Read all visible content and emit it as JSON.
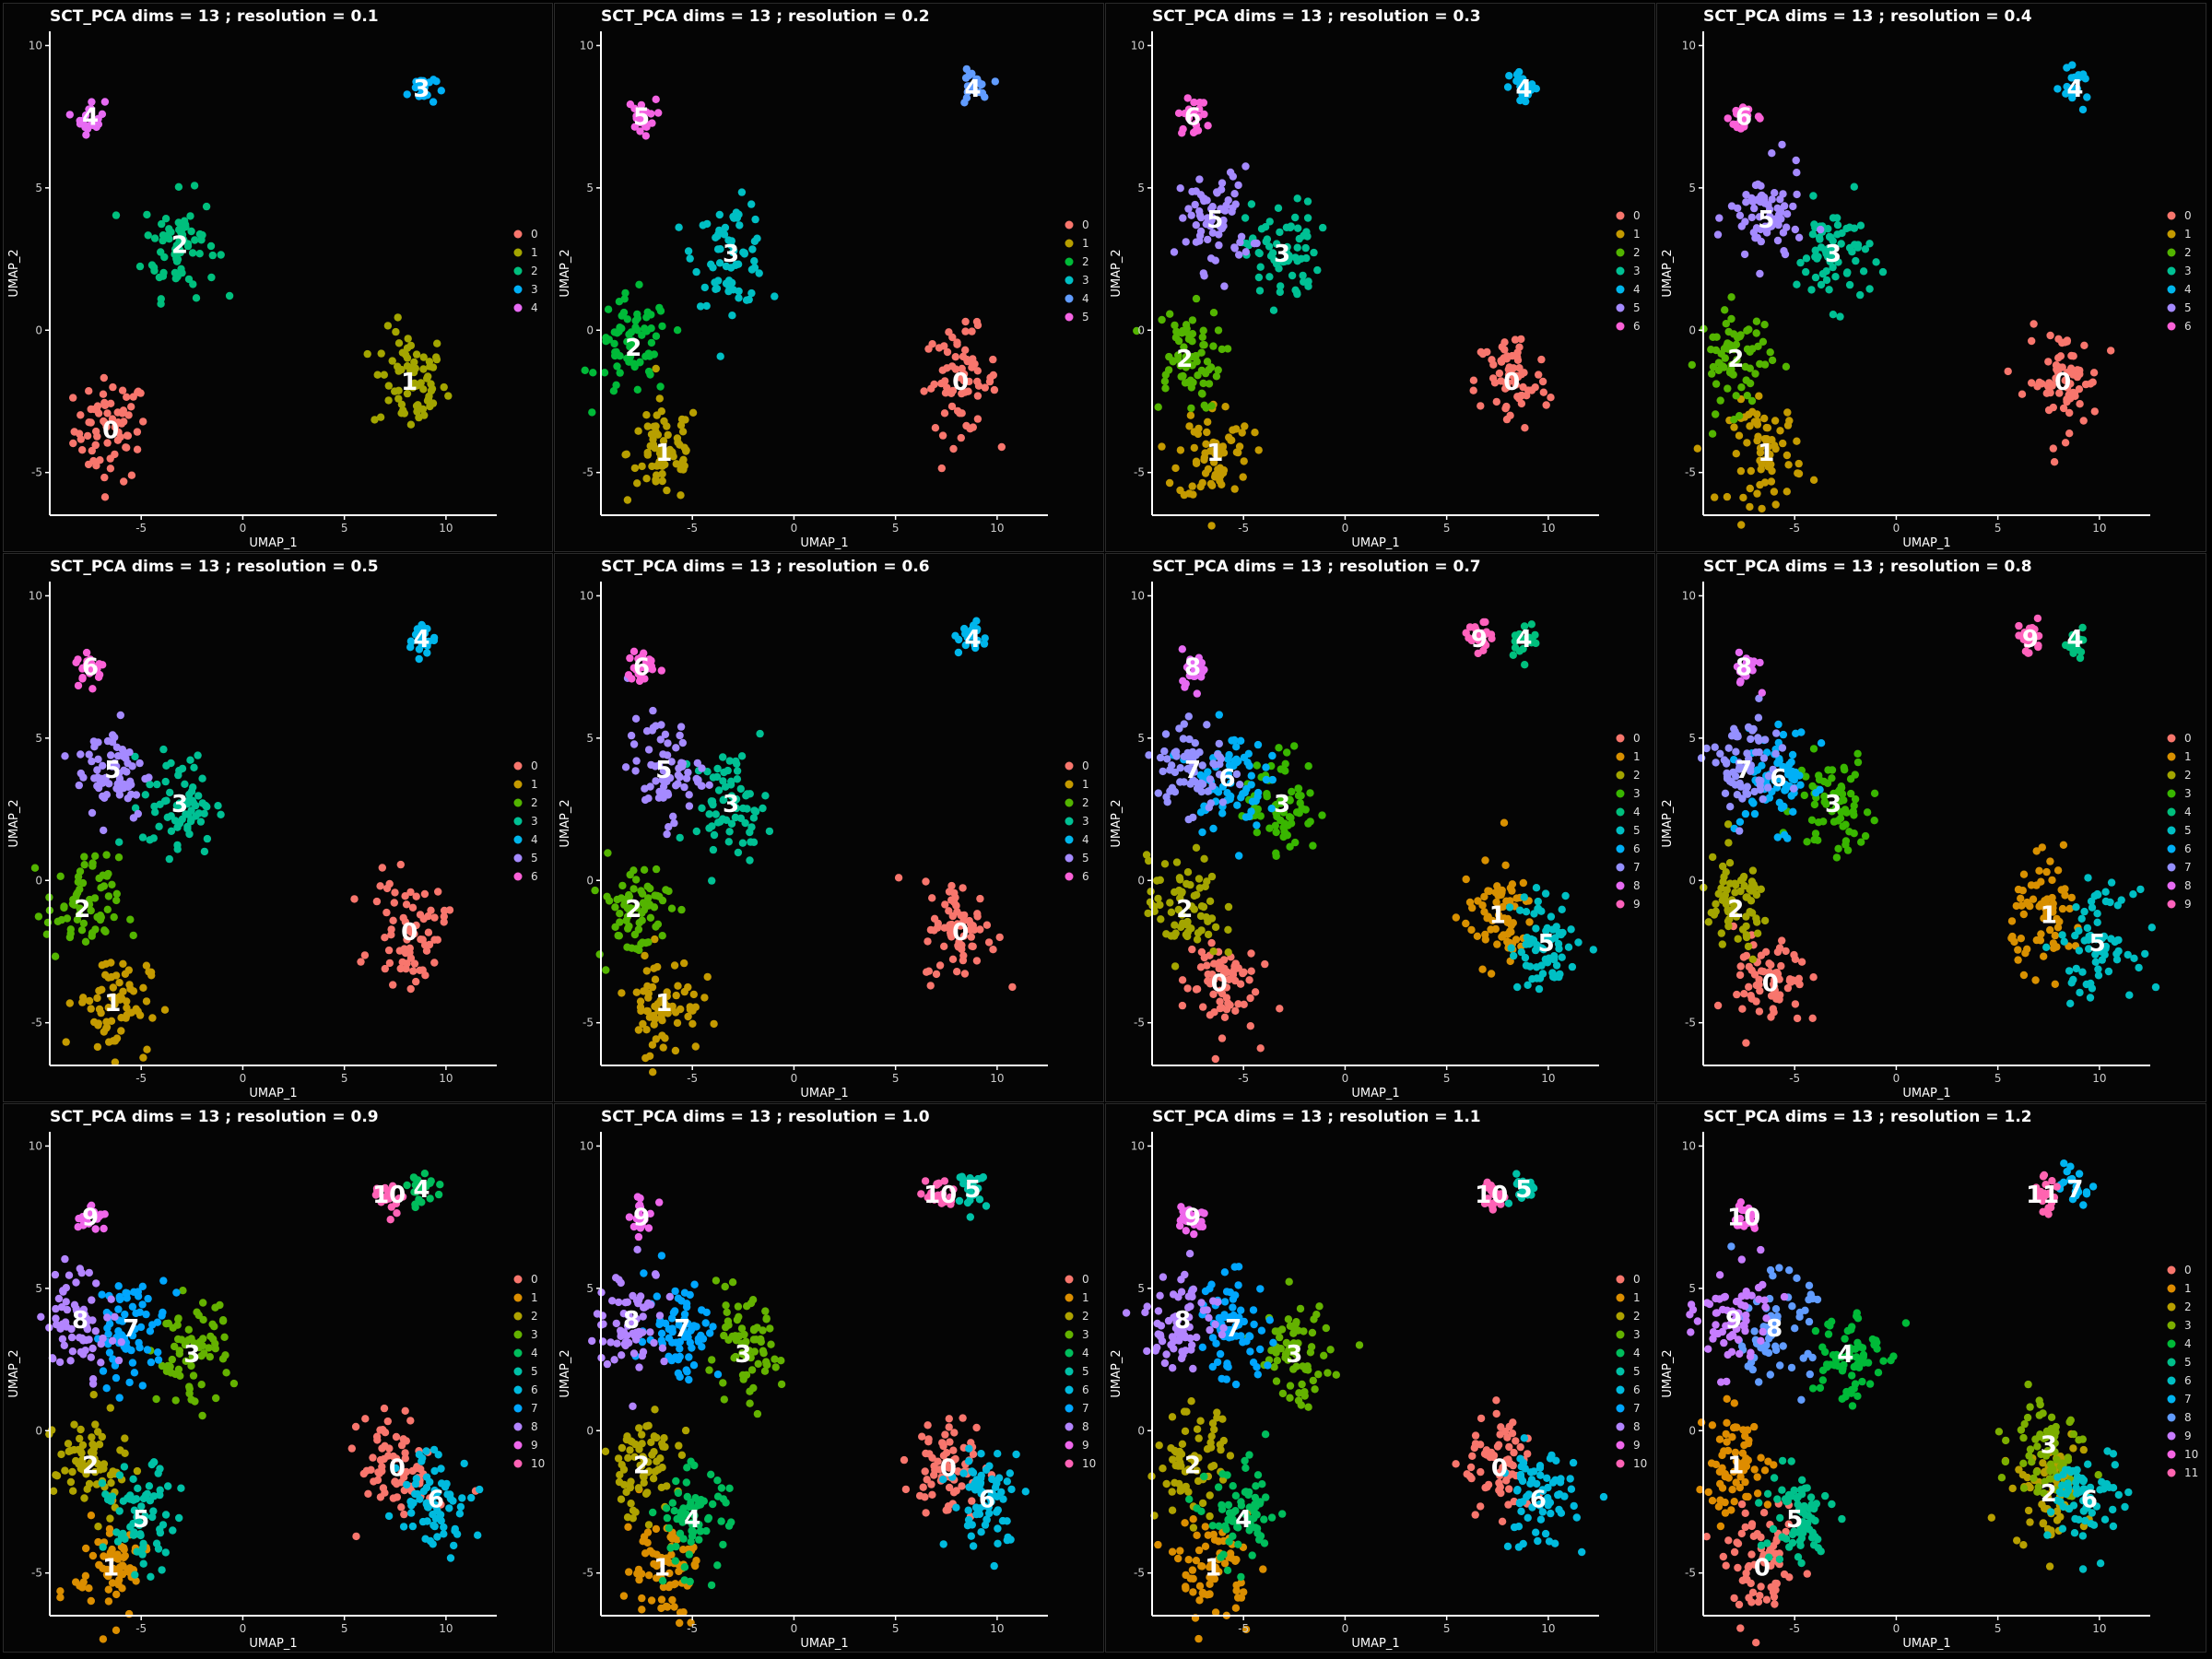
{
  "figure": {
    "xlabel": "UMAP_1",
    "ylabel": "UMAP_2",
    "xticks": [
      -5,
      0,
      5,
      10
    ],
    "yticks": [
      -5,
      0,
      5,
      10
    ],
    "xlim": [
      -9.5,
      12.5
    ],
    "ylim": [
      -6.5,
      10.5
    ],
    "background": "#000000",
    "text_color": "#ffffff"
  },
  "chart_data": [
    {
      "type": "scatter",
      "title": "SCT_PCA dims =  13 ; resolution = 0.1",
      "legend": [
        "0",
        "1",
        "2",
        "3",
        "4"
      ],
      "clusters": [
        {
          "label": "0",
          "color": "#F8766D",
          "center": [
            -6.5,
            -3.5
          ]
        },
        {
          "label": "1",
          "color": "#A3A500",
          "center": [
            8.2,
            -1.8
          ]
        },
        {
          "label": "2",
          "color": "#00BF7D",
          "center": [
            -3.1,
            3.0
          ]
        },
        {
          "label": "3",
          "color": "#00B0F6",
          "center": [
            8.8,
            8.5
          ]
        },
        {
          "label": "4",
          "color": "#E76BF3",
          "center": [
            -7.5,
            7.5
          ]
        }
      ]
    },
    {
      "type": "scatter",
      "title": "SCT_PCA dims =  13 ; resolution = 0.2",
      "legend": [
        "0",
        "1",
        "2",
        "3",
        "4",
        "5"
      ],
      "clusters": [
        {
          "label": "0",
          "color": "#F8766D",
          "center": [
            8.2,
            -1.8
          ]
        },
        {
          "label": "1",
          "color": "#B79F00",
          "center": [
            -6.4,
            -4.3
          ]
        },
        {
          "label": "2",
          "color": "#00BA38",
          "center": [
            -7.9,
            -0.6
          ]
        },
        {
          "label": "3",
          "color": "#00BFC4",
          "center": [
            -3.1,
            2.7
          ]
        },
        {
          "label": "4",
          "color": "#619CFF",
          "center": [
            8.8,
            8.5
          ]
        },
        {
          "label": "5",
          "color": "#F564E3",
          "center": [
            -7.5,
            7.5
          ]
        }
      ]
    },
    {
      "type": "scatter",
      "title": "SCT_PCA dims =  13 ; resolution = 0.3",
      "legend": [
        "0",
        "1",
        "2",
        "3",
        "4",
        "5",
        "6"
      ],
      "clusters": [
        {
          "label": "0",
          "color": "#F8766D",
          "center": [
            8.2,
            -1.8
          ]
        },
        {
          "label": "1",
          "color": "#C49A00",
          "center": [
            -6.4,
            -4.3
          ]
        },
        {
          "label": "2",
          "color": "#53B400",
          "center": [
            -7.9,
            -1.0
          ]
        },
        {
          "label": "3",
          "color": "#00C094",
          "center": [
            -3.1,
            2.7
          ]
        },
        {
          "label": "4",
          "color": "#00B6EB",
          "center": [
            8.8,
            8.5
          ]
        },
        {
          "label": "5",
          "color": "#A58AFF",
          "center": [
            -6.4,
            3.9
          ]
        },
        {
          "label": "6",
          "color": "#FB61D7",
          "center": [
            -7.5,
            7.5
          ]
        }
      ]
    },
    {
      "type": "scatter",
      "title": "SCT_PCA dims =  13 ; resolution = 0.4",
      "legend": [
        "0",
        "1",
        "2",
        "3",
        "4",
        "5",
        "6"
      ],
      "clusters": [
        {
          "label": "0",
          "color": "#F8766D",
          "center": [
            8.2,
            -1.8
          ]
        },
        {
          "label": "1",
          "color": "#C49A00",
          "center": [
            -6.4,
            -4.3
          ]
        },
        {
          "label": "2",
          "color": "#53B400",
          "center": [
            -7.9,
            -1.0
          ]
        },
        {
          "label": "3",
          "color": "#00C094",
          "center": [
            -3.1,
            2.7
          ]
        },
        {
          "label": "4",
          "color": "#00B6EB",
          "center": [
            8.8,
            8.5
          ]
        },
        {
          "label": "5",
          "color": "#A58AFF",
          "center": [
            -6.4,
            3.9
          ]
        },
        {
          "label": "6",
          "color": "#FB61D7",
          "center": [
            -7.5,
            7.5
          ]
        }
      ]
    },
    {
      "type": "scatter",
      "title": "SCT_PCA dims =  13 ; resolution = 0.5",
      "legend": [
        "0",
        "1",
        "2",
        "3",
        "4",
        "5",
        "6"
      ],
      "clusters": [
        {
          "label": "0",
          "color": "#F8766D",
          "center": [
            8.2,
            -1.8
          ]
        },
        {
          "label": "1",
          "color": "#C49A00",
          "center": [
            -6.4,
            -4.3
          ]
        },
        {
          "label": "2",
          "color": "#53B400",
          "center": [
            -7.9,
            -1.0
          ]
        },
        {
          "label": "3",
          "color": "#00C094",
          "center": [
            -3.1,
            2.7
          ]
        },
        {
          "label": "4",
          "color": "#00B6EB",
          "center": [
            8.8,
            8.5
          ]
        },
        {
          "label": "5",
          "color": "#A58AFF",
          "center": [
            -6.4,
            3.9
          ]
        },
        {
          "label": "6",
          "color": "#FB61D7",
          "center": [
            -7.5,
            7.5
          ]
        }
      ]
    },
    {
      "type": "scatter",
      "title": "SCT_PCA dims =  13 ; resolution = 0.6",
      "legend": [
        "0",
        "1",
        "2",
        "3",
        "4",
        "5",
        "6"
      ],
      "clusters": [
        {
          "label": "0",
          "color": "#F8766D",
          "center": [
            8.2,
            -1.8
          ]
        },
        {
          "label": "1",
          "color": "#C49A00",
          "center": [
            -6.4,
            -4.3
          ]
        },
        {
          "label": "2",
          "color": "#53B400",
          "center": [
            -7.9,
            -1.0
          ]
        },
        {
          "label": "3",
          "color": "#00C094",
          "center": [
            -3.1,
            2.7
          ]
        },
        {
          "label": "4",
          "color": "#00B6EB",
          "center": [
            8.8,
            8.5
          ]
        },
        {
          "label": "5",
          "color": "#A58AFF",
          "center": [
            -6.4,
            3.9
          ]
        },
        {
          "label": "6",
          "color": "#FB61D7",
          "center": [
            -7.5,
            7.5
          ]
        }
      ]
    },
    {
      "type": "scatter",
      "title": "SCT_PCA dims =  13 ; resolution = 0.7",
      "legend": [
        "0",
        "1",
        "2",
        "3",
        "4",
        "5",
        "6",
        "7",
        "8",
        "9"
      ],
      "clusters": [
        {
          "label": "0",
          "color": "#F8766D",
          "center": [
            -6.2,
            -3.6
          ]
        },
        {
          "label": "1",
          "color": "#D89000",
          "center": [
            7.5,
            -1.2
          ]
        },
        {
          "label": "2",
          "color": "#A3A500",
          "center": [
            -7.9,
            -1.0
          ]
        },
        {
          "label": "3",
          "color": "#39B600",
          "center": [
            -3.1,
            2.7
          ]
        },
        {
          "label": "4",
          "color": "#00BF7D",
          "center": [
            8.8,
            8.5
          ]
        },
        {
          "label": "5",
          "color": "#00BFC4",
          "center": [
            9.9,
            -2.2
          ]
        },
        {
          "label": "6",
          "color": "#00B0F6",
          "center": [
            -5.8,
            3.6
          ]
        },
        {
          "label": "7",
          "color": "#9590FF",
          "center": [
            -7.5,
            3.9
          ]
        },
        {
          "label": "8",
          "color": "#E76BF3",
          "center": [
            -7.5,
            7.5
          ]
        },
        {
          "label": "9",
          "color": "#FF62BC",
          "center": [
            6.6,
            8.5
          ]
        }
      ]
    },
    {
      "type": "scatter",
      "title": "SCT_PCA dims =  13 ; resolution = 0.8",
      "legend": [
        "0",
        "1",
        "2",
        "3",
        "4",
        "5",
        "6",
        "7",
        "8",
        "9"
      ],
      "clusters": [
        {
          "label": "0",
          "color": "#F8766D",
          "center": [
            -6.2,
            -3.6
          ]
        },
        {
          "label": "1",
          "color": "#D89000",
          "center": [
            7.5,
            -1.2
          ]
        },
        {
          "label": "2",
          "color": "#A3A500",
          "center": [
            -7.9,
            -1.0
          ]
        },
        {
          "label": "3",
          "color": "#39B600",
          "center": [
            -3.1,
            2.7
          ]
        },
        {
          "label": "4",
          "color": "#00BF7D",
          "center": [
            8.8,
            8.5
          ]
        },
        {
          "label": "5",
          "color": "#00BFC4",
          "center": [
            9.9,
            -2.2
          ]
        },
        {
          "label": "6",
          "color": "#00B0F6",
          "center": [
            -5.8,
            3.6
          ]
        },
        {
          "label": "7",
          "color": "#9590FF",
          "center": [
            -7.5,
            3.9
          ]
        },
        {
          "label": "8",
          "color": "#E76BF3",
          "center": [
            -7.5,
            7.5
          ]
        },
        {
          "label": "9",
          "color": "#FF62BC",
          "center": [
            6.6,
            8.5
          ]
        }
      ]
    },
    {
      "type": "scatter",
      "title": "SCT_PCA dims =  13 ; resolution = 0.9",
      "legend": [
        "0",
        "1",
        "2",
        "3",
        "4",
        "5",
        "6",
        "7",
        "8",
        "9",
        "10"
      ],
      "clusters": [
        {
          "label": "0",
          "color": "#F8766D",
          "center": [
            7.6,
            -1.3
          ]
        },
        {
          "label": "1",
          "color": "#DB8E00",
          "center": [
            -6.5,
            -4.8
          ]
        },
        {
          "label": "2",
          "color": "#AEA200",
          "center": [
            -7.5,
            -1.2
          ]
        },
        {
          "label": "3",
          "color": "#64B200",
          "center": [
            -2.5,
            2.7
          ]
        },
        {
          "label": "4",
          "color": "#00BD5C",
          "center": [
            8.8,
            8.5
          ]
        },
        {
          "label": "5",
          "color": "#00C1A7",
          "center": [
            -5.0,
            -3.1
          ]
        },
        {
          "label": "6",
          "color": "#00BADE",
          "center": [
            9.5,
            -2.4
          ]
        },
        {
          "label": "7",
          "color": "#00A6FF",
          "center": [
            -5.5,
            3.6
          ]
        },
        {
          "label": "8",
          "color": "#B385FF",
          "center": [
            -8.0,
            3.9
          ]
        },
        {
          "label": "9",
          "color": "#EF67EB",
          "center": [
            -7.5,
            7.5
          ]
        },
        {
          "label": "10",
          "color": "#FF63B6",
          "center": [
            7.2,
            8.3
          ]
        }
      ]
    },
    {
      "type": "scatter",
      "title": "SCT_PCA dims =  13 ; resolution = 1.0",
      "legend": [
        "0",
        "1",
        "2",
        "3",
        "4",
        "5",
        "6",
        "7",
        "8",
        "9",
        "10"
      ],
      "clusters": [
        {
          "label": "0",
          "color": "#F8766D",
          "center": [
            7.6,
            -1.3
          ]
        },
        {
          "label": "1",
          "color": "#DB8E00",
          "center": [
            -6.5,
            -4.8
          ]
        },
        {
          "label": "2",
          "color": "#AEA200",
          "center": [
            -7.5,
            -1.2
          ]
        },
        {
          "label": "3",
          "color": "#64B200",
          "center": [
            -2.5,
            2.7
          ]
        },
        {
          "label": "4",
          "color": "#00BD5C",
          "center": [
            -5.0,
            -3.1
          ]
        },
        {
          "label": "5",
          "color": "#00C1A7",
          "center": [
            8.8,
            8.5
          ]
        },
        {
          "label": "6",
          "color": "#00BADE",
          "center": [
            9.5,
            -2.4
          ]
        },
        {
          "label": "7",
          "color": "#00A6FF",
          "center": [
            -5.5,
            3.6
          ]
        },
        {
          "label": "8",
          "color": "#B385FF",
          "center": [
            -8.0,
            3.9
          ]
        },
        {
          "label": "9",
          "color": "#EF67EB",
          "center": [
            -7.5,
            7.5
          ]
        },
        {
          "label": "10",
          "color": "#FF63B6",
          "center": [
            7.2,
            8.3
          ]
        }
      ]
    },
    {
      "type": "scatter",
      "title": "SCT_PCA dims =  13 ; resolution = 1.1",
      "legend": [
        "0",
        "1",
        "2",
        "3",
        "4",
        "5",
        "6",
        "7",
        "8",
        "9",
        "10"
      ],
      "clusters": [
        {
          "label": "0",
          "color": "#F8766D",
          "center": [
            7.6,
            -1.3
          ]
        },
        {
          "label": "1",
          "color": "#DB8E00",
          "center": [
            -6.5,
            -4.8
          ]
        },
        {
          "label": "2",
          "color": "#AEA200",
          "center": [
            -7.5,
            -1.2
          ]
        },
        {
          "label": "3",
          "color": "#64B200",
          "center": [
            -2.5,
            2.7
          ]
        },
        {
          "label": "4",
          "color": "#00BD5C",
          "center": [
            -5.0,
            -3.1
          ]
        },
        {
          "label": "5",
          "color": "#00C1A7",
          "center": [
            8.8,
            8.5
          ]
        },
        {
          "label": "6",
          "color": "#00BADE",
          "center": [
            9.5,
            -2.4
          ]
        },
        {
          "label": "7",
          "color": "#00A6FF",
          "center": [
            -5.5,
            3.6
          ]
        },
        {
          "label": "8",
          "color": "#B385FF",
          "center": [
            -8.0,
            3.9
          ]
        },
        {
          "label": "9",
          "color": "#EF67EB",
          "center": [
            -7.5,
            7.5
          ]
        },
        {
          "label": "10",
          "color": "#FF63B6",
          "center": [
            7.2,
            8.3
          ]
        }
      ]
    },
    {
      "type": "scatter",
      "title": "SCT_PCA dims =  13 ; resolution = 1.2",
      "legend": [
        "0",
        "1",
        "2",
        "3",
        "4",
        "5",
        "6",
        "7",
        "8",
        "9",
        "10",
        "11"
      ],
      "clusters": [
        {
          "label": "0",
          "color": "#F8766D",
          "center": [
            -6.6,
            -4.8
          ]
        },
        {
          "label": "1",
          "color": "#DE8C00",
          "center": [
            -7.9,
            -1.2
          ]
        },
        {
          "label": "2",
          "color": "#B79F00",
          "center": [
            7.5,
            -2.2
          ]
        },
        {
          "label": "3",
          "color": "#7CAE00",
          "center": [
            7.5,
            -0.5
          ]
        },
        {
          "label": "4",
          "color": "#00BA38",
          "center": [
            -2.5,
            2.7
          ]
        },
        {
          "label": "5",
          "color": "#00C08B",
          "center": [
            -5.0,
            -3.1
          ]
        },
        {
          "label": "6",
          "color": "#00BFC4",
          "center": [
            9.5,
            -2.4
          ]
        },
        {
          "label": "7",
          "color": "#00B4F0",
          "center": [
            8.8,
            8.5
          ]
        },
        {
          "label": "8",
          "color": "#619CFF",
          "center": [
            -6.0,
            3.6
          ]
        },
        {
          "label": "9",
          "color": "#C77CFF",
          "center": [
            -8.0,
            3.9
          ]
        },
        {
          "label": "10",
          "color": "#F564E3",
          "center": [
            -7.5,
            7.5
          ]
        },
        {
          "label": "11",
          "color": "#FF64B0",
          "center": [
            7.2,
            8.3
          ]
        }
      ]
    }
  ]
}
